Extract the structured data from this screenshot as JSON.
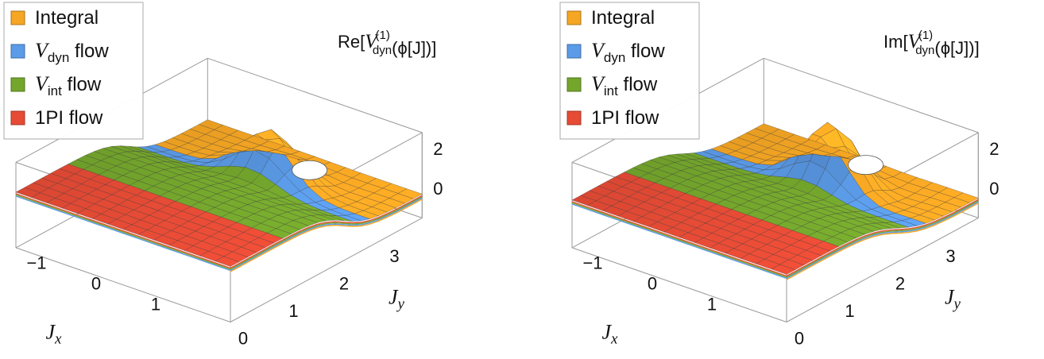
{
  "chart_data": [
    {
      "type": "surface3d",
      "title": "Re[V_dyn^(1)(ϕ[J])]",
      "title_parts": {
        "prefix": "Re[",
        "base": "V",
        "sub": "dyn",
        "sup": "(1)",
        "suffix": "(ϕ[J])]"
      },
      "xlabel": {
        "base": "J",
        "sub": "x"
      },
      "ylabel": {
        "base": "J",
        "sub": "y"
      },
      "x_ticks": [
        "−1",
        "0",
        "1"
      ],
      "y_ticks": [
        "0",
        "1",
        "2",
        "3"
      ],
      "z_ticks": [
        "0",
        "2"
      ],
      "xlim": [
        -1.8,
        1.8
      ],
      "ylim": [
        0,
        3.8
      ],
      "zlim": [
        -1.5,
        2.8
      ],
      "legend": [
        {
          "base": "Integral",
          "sub": "",
          "rest": "",
          "color": "#F5A623"
        },
        {
          "base": "V",
          "sub": "dyn",
          "rest": " flow",
          "color": "#5B9BE8"
        },
        {
          "base": "V",
          "sub": "int",
          "rest": " flow",
          "color": "#74A62C"
        },
        {
          "base": "1PI flow",
          "sub": "",
          "rest": "",
          "color": "#E64B35"
        }
      ],
      "legend_position": "top-left",
      "regions": [
        {
          "name": "1PI flow",
          "y_range": [
            0,
            1.0
          ]
        },
        {
          "name": "V_int flow",
          "y_range": [
            1.0,
            2.4
          ]
        },
        {
          "name": "V_dyn flow",
          "y_range": [
            2.4,
            2.7
          ]
        },
        {
          "name": "Integral",
          "y_range": [
            2.7,
            3.8
          ]
        }
      ]
    },
    {
      "type": "surface3d",
      "title": "Im[V_dyn^(1)(ϕ[J])]",
      "title_parts": {
        "prefix": "Im[",
        "base": "V",
        "sub": "dyn",
        "sup": "(1)",
        "suffix": "(ϕ[J])]"
      },
      "xlabel": {
        "base": "J",
        "sub": "x"
      },
      "ylabel": {
        "base": "J",
        "sub": "y"
      },
      "x_ticks": [
        "−1",
        "0",
        "1"
      ],
      "y_ticks": [
        "0",
        "1",
        "2",
        "3"
      ],
      "z_ticks": [
        "0",
        "2"
      ],
      "xlim": [
        -1.8,
        1.8
      ],
      "ylim": [
        0,
        3.8
      ],
      "zlim": [
        -1.5,
        2.8
      ],
      "legend": [
        {
          "base": "Integral",
          "sub": "",
          "rest": "",
          "color": "#F5A623"
        },
        {
          "base": "V",
          "sub": "dyn",
          "rest": " flow",
          "color": "#5B9BE8"
        },
        {
          "base": "V",
          "sub": "int",
          "rest": " flow",
          "color": "#74A62C"
        },
        {
          "base": "1PI flow",
          "sub": "",
          "rest": "",
          "color": "#E64B35"
        }
      ],
      "legend_position": "top-left",
      "regions": [
        {
          "name": "1PI flow",
          "y_range": [
            0,
            1.0
          ]
        },
        {
          "name": "V_int flow",
          "y_range": [
            1.0,
            2.4
          ]
        },
        {
          "name": "V_dyn flow",
          "y_range": [
            2.4,
            2.7
          ]
        },
        {
          "name": "Integral",
          "y_range": [
            2.7,
            3.8
          ]
        }
      ]
    }
  ]
}
